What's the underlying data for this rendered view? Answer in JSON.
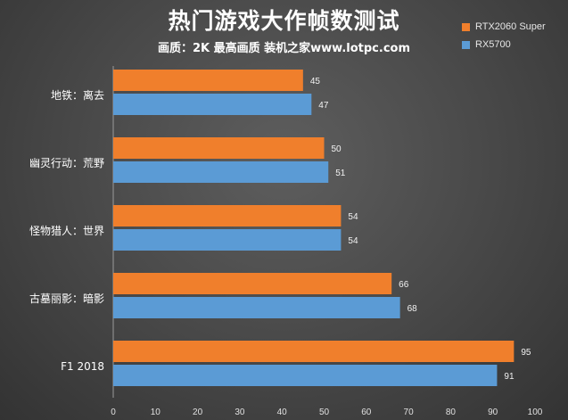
{
  "chart_data": {
    "type": "bar",
    "orientation": "horizontal",
    "title": "热门游戏大作帧数测试",
    "subtitle": "画质：2K 最高画质 装机之家www.lotpc.com",
    "categories": [
      "地铁：离去",
      "幽灵行动：荒野",
      "怪物猎人：世界",
      "古墓丽影：暗影",
      "F1 2018"
    ],
    "series": [
      {
        "name": "RTX2060 Super",
        "color": "#f07f2c",
        "values": [
          45,
          50,
          54,
          66,
          95
        ]
      },
      {
        "name": "RX5700",
        "color": "#5b9bd5",
        "values": [
          47,
          51,
          54,
          68,
          91
        ]
      }
    ],
    "xlim": [
      0,
      100
    ],
    "ticks": [
      "0",
      "10",
      "20",
      "30",
      "40",
      "50",
      "60",
      "70",
      "80",
      "90",
      "100"
    ],
    "grid": false,
    "legend_position": "top-right"
  }
}
